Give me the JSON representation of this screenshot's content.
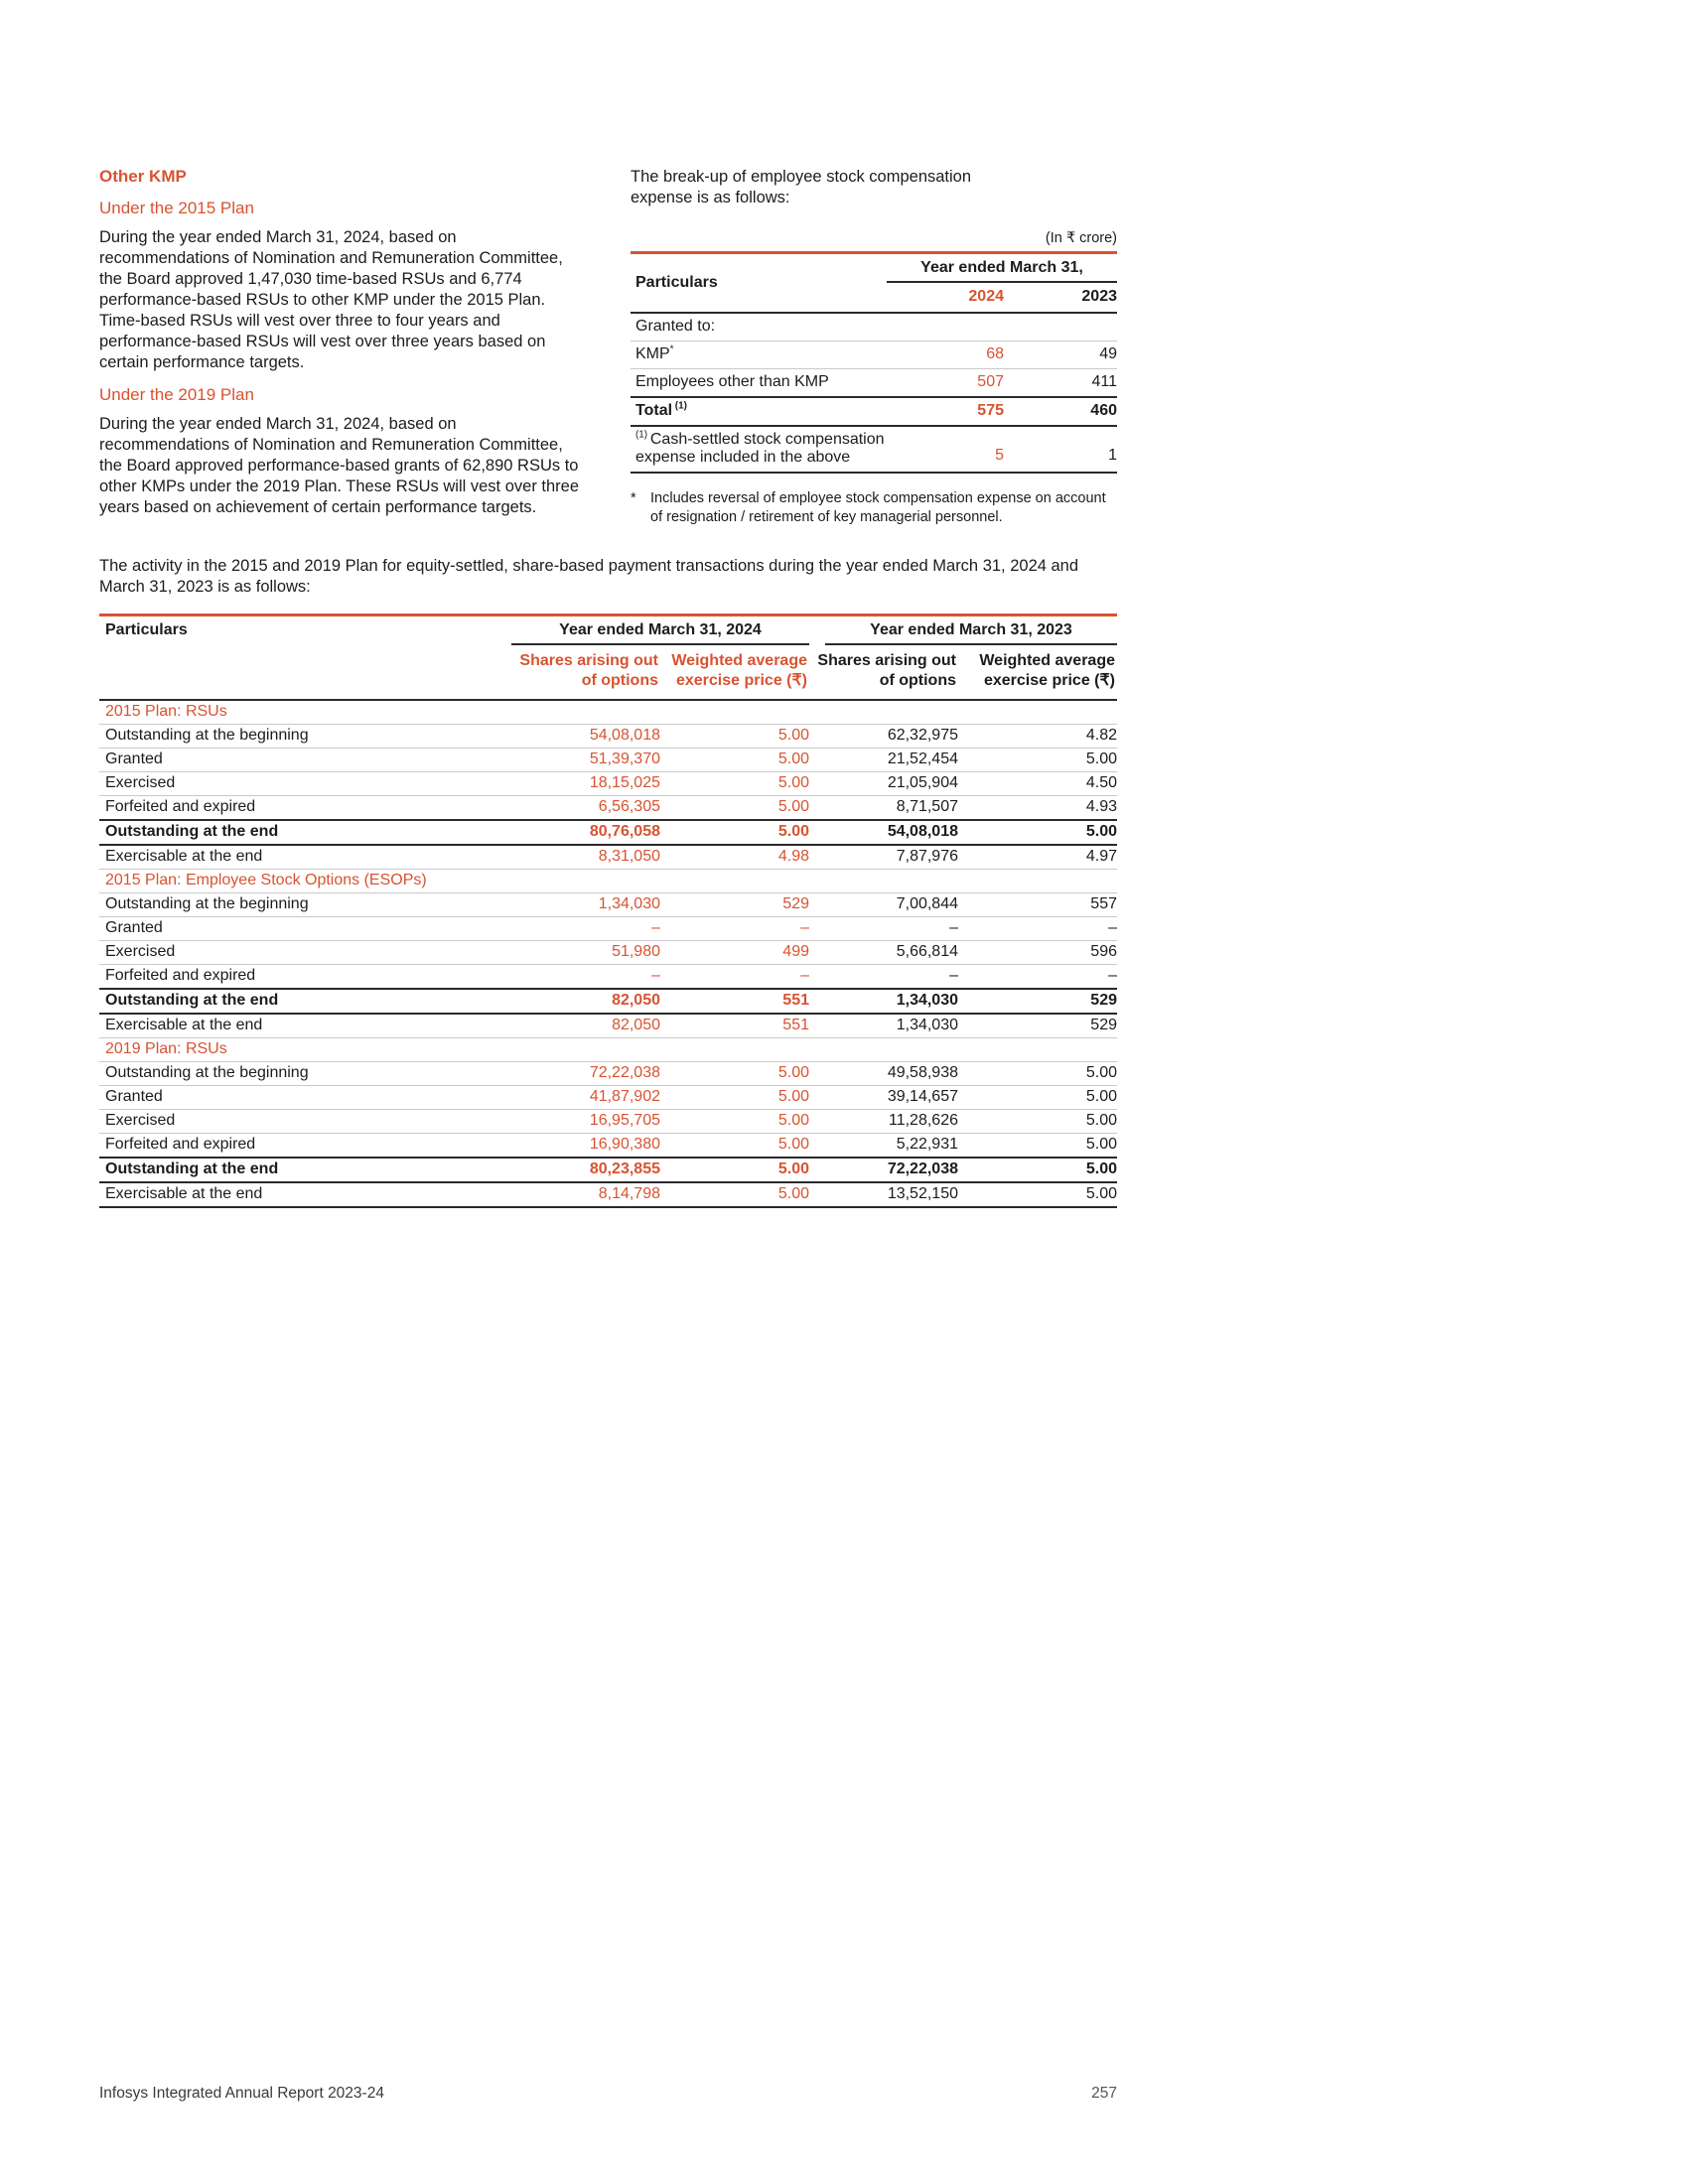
{
  "accent_color": "#d85331",
  "left_column": {
    "heading": "Other KMP",
    "sub_2015": "Under the 2015 Plan",
    "para_2015": "During the year ended March 31, 2024, based on recommendations of Nomination and Remuneration Committee, the Board approved 1,47,030 time-based RSUs and 6,774 performance-based RSUs to other KMP under the 2015 Plan. Time-based RSUs will vest over three to four years and performance-based RSUs will vest over three years based on certain performance targets.",
    "sub_2019": "Under the 2019 Plan",
    "para_2019": "During the year ended March 31, 2024, based on recommendations of Nomination and Remuneration Committee, the Board approved performance-based grants of 62,890 RSUs to other KMPs under the 2019 Plan. These RSUs will vest over three years based on achievement of certain performance targets."
  },
  "right_column": {
    "intro": "The break-up of employee stock compensation expense is as follows:",
    "unit_note": "(In ₹ crore)",
    "table": {
      "col_header": "Particulars",
      "year_header": "Year ended March 31,",
      "years": [
        "2024",
        "2023"
      ],
      "rows": [
        {
          "label": "Granted to:",
          "v2024": "",
          "v2023": "",
          "style": "group"
        },
        {
          "label": "KMP",
          "sup_after": "*",
          "v2024": "68",
          "v2023": "49",
          "style": "item"
        },
        {
          "label": "Employees other than KMP",
          "v2024": "507",
          "v2023": "411",
          "style": "item"
        },
        {
          "label": "Total",
          "sup_after": " (1)",
          "v2024": "575",
          "v2023": "460",
          "style": "total"
        },
        {
          "sup_before": "(1) ",
          "label": "Cash-settled stock compensation expense included in the above",
          "v2024": "5",
          "v2023": "1",
          "style": "note"
        }
      ]
    },
    "footnote_marker": "*",
    "footnote": "Includes reversal of employee stock compensation expense on account of resignation / retirement of key managerial personnel."
  },
  "activity_intro": "The activity in the 2015 and 2019 Plan for equity-settled, share-based payment transactions during the year ended March 31, 2024 and March 31, 2023 is as follows:",
  "activity_table": {
    "col_header": "Particulars",
    "group_headers": [
      "Year ended March 31, 2024",
      "Year ended March 31, 2023"
    ],
    "sub_headers": [
      "Shares arising out of options",
      "Weighted average exercise price (₹)",
      "Shares arising out of options",
      "Weighted average exercise price (₹)"
    ],
    "sections": [
      {
        "title": "2015 Plan: RSUs",
        "rows": [
          {
            "label": "Outstanding at the beginning",
            "values": [
              "54,08,018",
              "5.00",
              "62,32,975",
              "4.82"
            ]
          },
          {
            "label": "Granted",
            "values": [
              "51,39,370",
              "5.00",
              "21,52,454",
              "5.00"
            ]
          },
          {
            "label": "Exercised",
            "values": [
              "18,15,025",
              "5.00",
              "21,05,904",
              "4.50"
            ]
          },
          {
            "label": "Forfeited and expired",
            "values": [
              "6,56,305",
              "5.00",
              "8,71,507",
              "4.93"
            ]
          },
          {
            "label": "Outstanding at the end",
            "values": [
              "80,76,058",
              "5.00",
              "54,08,018",
              "5.00"
            ],
            "bold": true
          },
          {
            "label": "Exercisable at the end",
            "values": [
              "8,31,050",
              "4.98",
              "7,87,976",
              "4.97"
            ]
          }
        ]
      },
      {
        "title": "2015 Plan: Employee Stock Options (ESOPs)",
        "rows": [
          {
            "label": "Outstanding at the beginning",
            "values": [
              "1,34,030",
              "529",
              "7,00,844",
              "557"
            ]
          },
          {
            "label": "Granted",
            "values": [
              "–",
              "–",
              "–",
              "–"
            ]
          },
          {
            "label": "Exercised",
            "values": [
              "51,980",
              "499",
              "5,66,814",
              "596"
            ]
          },
          {
            "label": "Forfeited and expired",
            "values": [
              "–",
              "–",
              "–",
              "–"
            ]
          },
          {
            "label": "Outstanding at the end",
            "values": [
              "82,050",
              "551",
              "1,34,030",
              "529"
            ],
            "bold": true
          },
          {
            "label": "Exercisable at the end",
            "values": [
              "82,050",
              "551",
              "1,34,030",
              "529"
            ]
          }
        ]
      },
      {
        "title": "2019 Plan: RSUs",
        "rows": [
          {
            "label": "Outstanding at the beginning",
            "values": [
              "72,22,038",
              "5.00",
              "49,58,938",
              "5.00"
            ]
          },
          {
            "label": "Granted",
            "values": [
              "41,87,902",
              "5.00",
              "39,14,657",
              "5.00"
            ]
          },
          {
            "label": "Exercised",
            "values": [
              "16,95,705",
              "5.00",
              "11,28,626",
              "5.00"
            ]
          },
          {
            "label": "Forfeited and expired",
            "values": [
              "16,90,380",
              "5.00",
              "5,22,931",
              "5.00"
            ]
          },
          {
            "label": "Outstanding at the end",
            "values": [
              "80,23,855",
              "5.00",
              "72,22,038",
              "5.00"
            ],
            "bold": true
          },
          {
            "label": "Exercisable at the end",
            "values": [
              "8,14,798",
              "5.00",
              "13,52,150",
              "5.00"
            ]
          }
        ]
      }
    ]
  },
  "footer": {
    "left": "Infosys Integrated Annual Report 2023-24",
    "page": "257"
  }
}
